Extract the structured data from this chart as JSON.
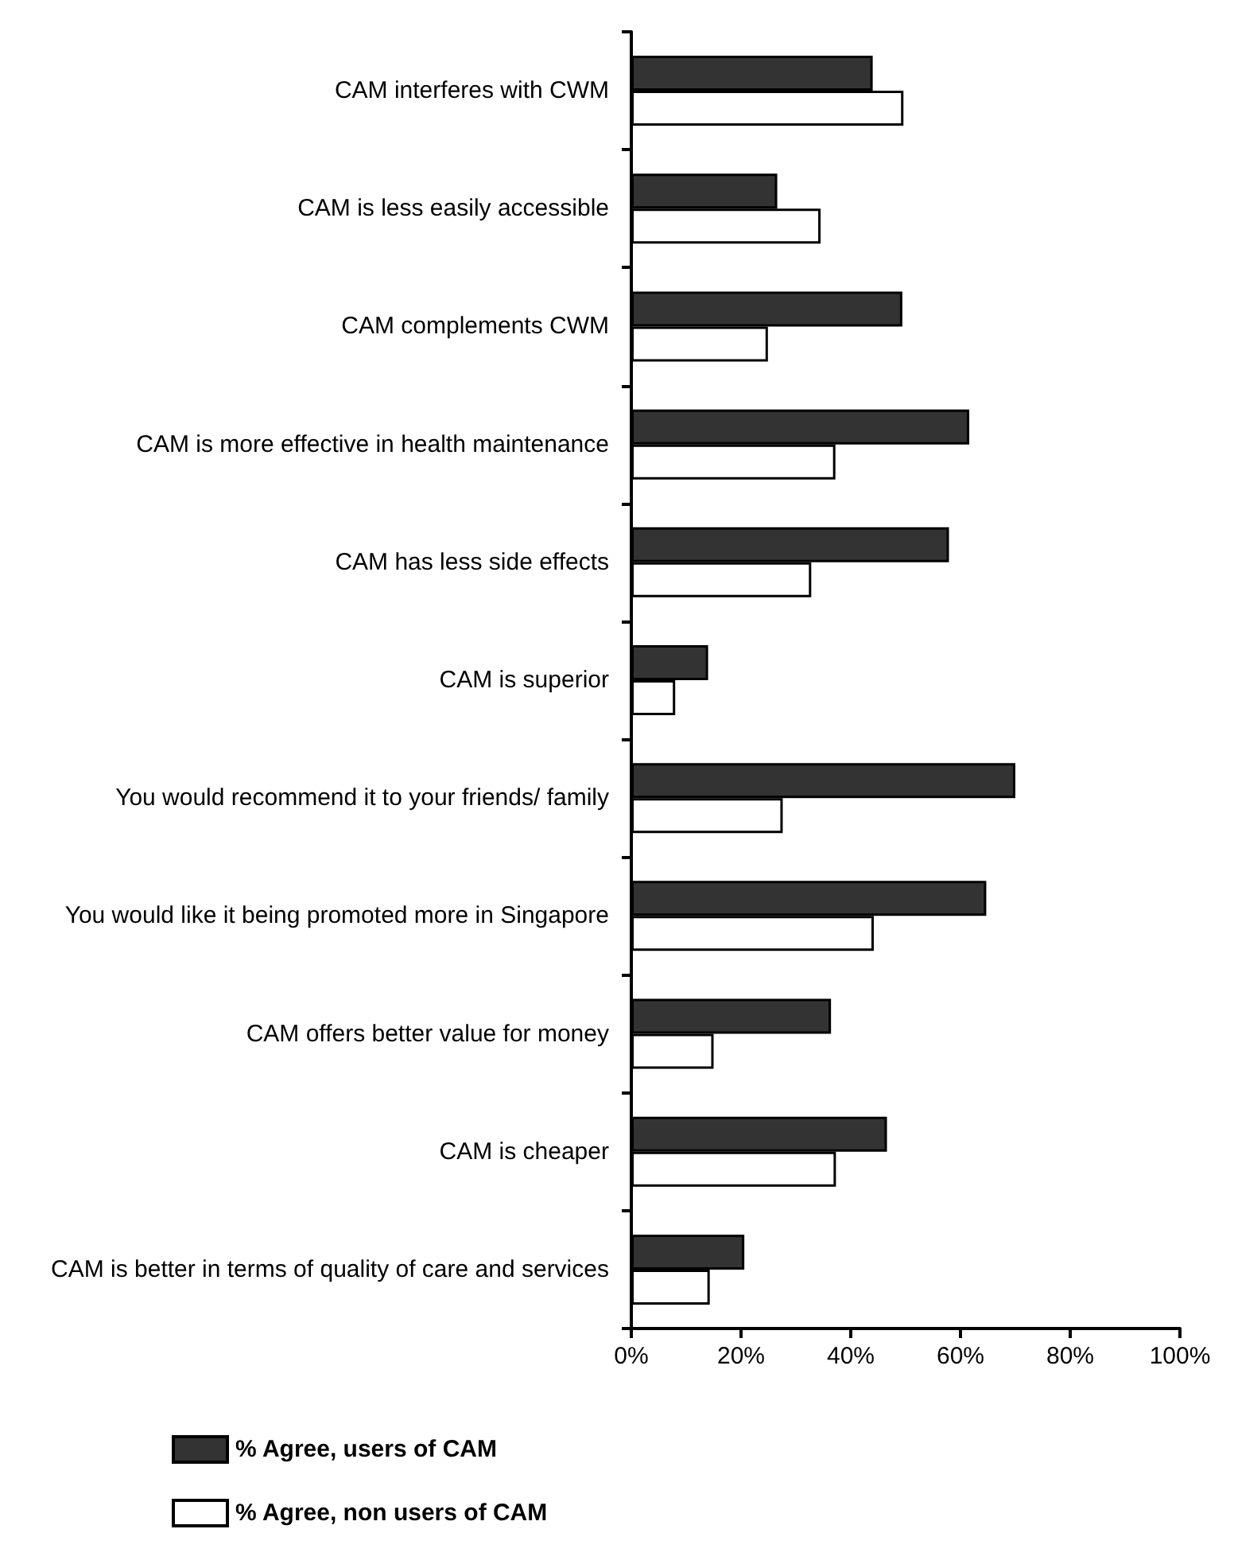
{
  "chart_data": {
    "type": "bar",
    "orientation": "horizontal",
    "categories": [
      "CAM interferes with CWM",
      "CAM is less easily accessible",
      "CAM complements CWM",
      "CAM is more effective in health maintenance",
      "CAM has less side effects",
      "CAM is superior",
      "You would recommend it to your friends/ family",
      "You would like it being promoted more in Singapore",
      "CAM offers better value for money",
      "CAM is cheaper",
      "CAM is better in terms of quality of care and services"
    ],
    "series": [
      {
        "name": "% Agree, users of CAM",
        "color": "#333333",
        "values": [
          44,
          26.6,
          49.4,
          61.6,
          57.9,
          14,
          70,
          64.7,
          36.4,
          46.6,
          20.6
        ]
      },
      {
        "name": "% Agree, non users of CAM",
        "color": "#ffffff",
        "values": [
          49.6,
          34.5,
          24.9,
          37.2,
          32.8,
          8,
          27.6,
          44.2,
          15,
          37.3,
          14.3
        ]
      }
    ],
    "xlim": [
      0,
      100
    ],
    "xticks": [
      {
        "value": 0,
        "label": "0%"
      },
      {
        "value": 20,
        "label": "20%"
      },
      {
        "value": 40,
        "label": "40%"
      },
      {
        "value": 60,
        "label": "60%"
      },
      {
        "value": 80,
        "label": "80%"
      },
      {
        "value": 100,
        "label": "100%"
      }
    ],
    "legend": "bottom left",
    "grid": false
  }
}
